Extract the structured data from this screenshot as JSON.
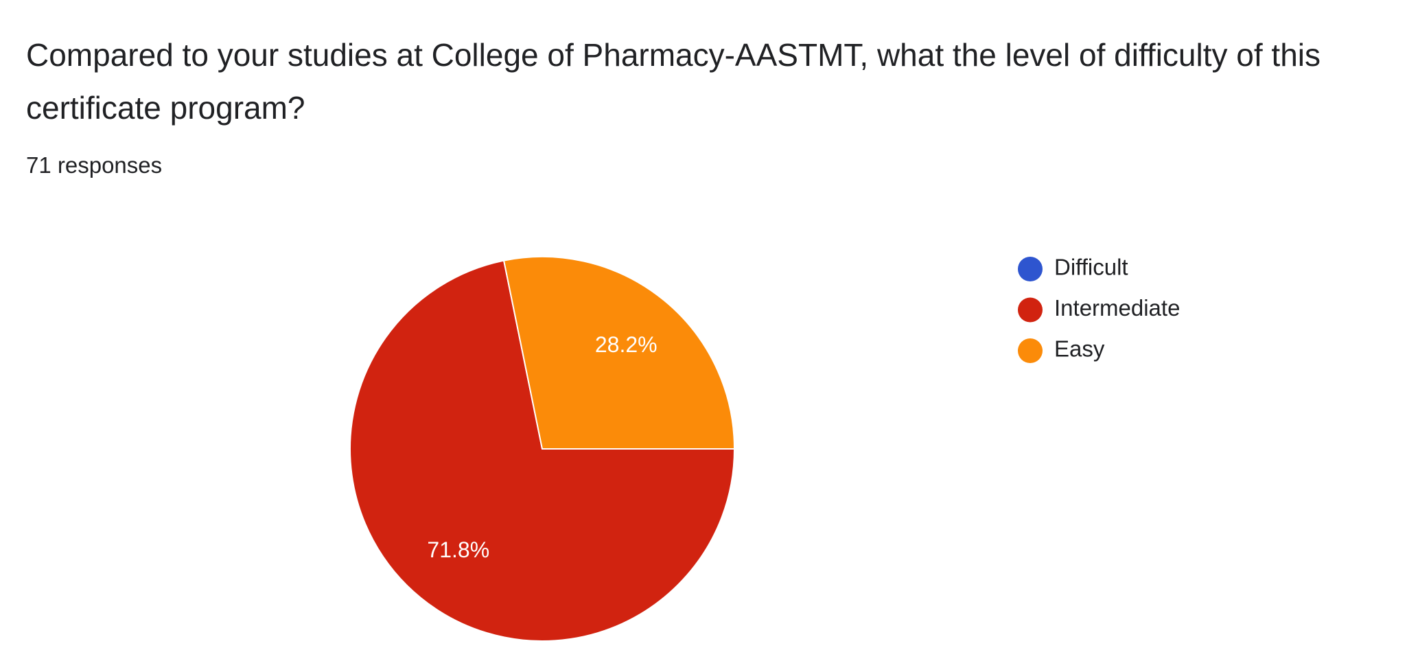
{
  "chart_data": {
    "type": "pie",
    "title": "Compared to your studies at College of Pharmacy-AASTMT, what the level of difficulty of this certificate program?",
    "subtitle": "71 responses",
    "categories": [
      "Difficult",
      "Intermediate",
      "Easy"
    ],
    "values": [
      0,
      71.8,
      28.2
    ],
    "value_labels": [
      null,
      "71.8%",
      "28.2%"
    ],
    "colors": [
      "#2e55cf",
      "#d12310",
      "#fb8b09"
    ],
    "legend": "right"
  }
}
